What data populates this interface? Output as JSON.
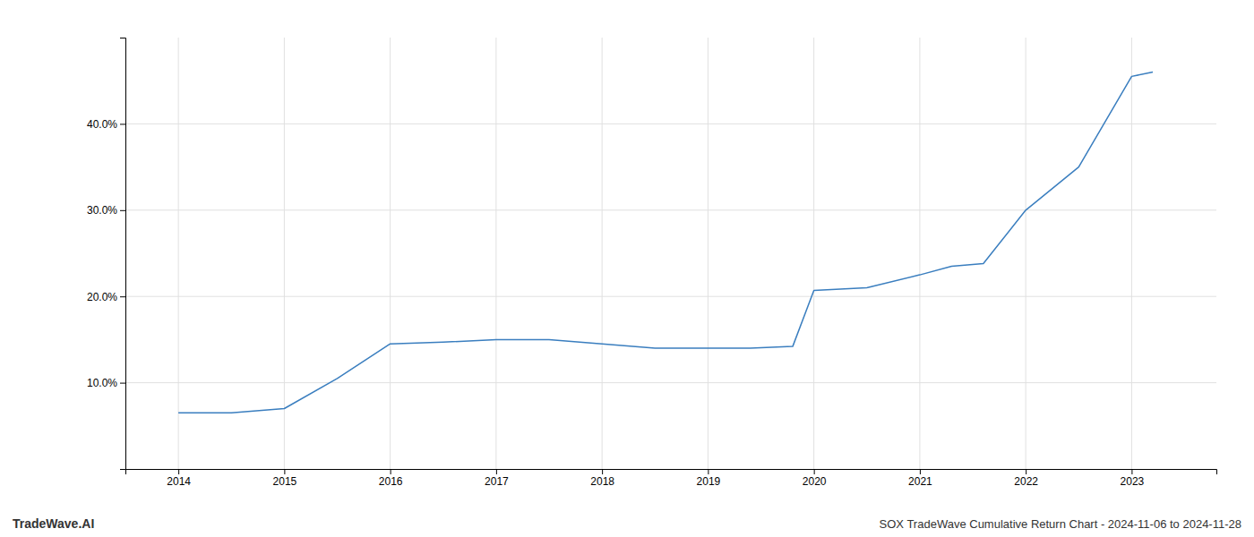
{
  "chart_data": {
    "type": "line",
    "title": "SOX TradeWave Cumulative Return Chart - 2024-11-06 to 2024-11-28",
    "annotations": [
      "TradeWave.AI"
    ],
    "x": [
      2014.0,
      2014.5,
      2015.0,
      2015.5,
      2016.0,
      2016.5,
      2017.0,
      2017.5,
      2018.0,
      2018.5,
      2019.0,
      2019.4,
      2019.8,
      2020.0,
      2020.5,
      2021.0,
      2021.3,
      2021.6,
      2022.0,
      2022.5,
      2023.0,
      2023.2
    ],
    "values": [
      6.5,
      6.5,
      7.0,
      10.5,
      14.5,
      14.7,
      15.0,
      15.0,
      14.5,
      14.0,
      14.0,
      14.0,
      14.2,
      20.7,
      21.0,
      22.5,
      23.5,
      23.8,
      30.0,
      35.0,
      45.5,
      46.0
    ],
    "color": "#3a7ebf",
    "xlim": [
      2013.5,
      2023.8
    ],
    "ylim": [
      0,
      50
    ],
    "xticks": [
      2014,
      2015,
      2016,
      2017,
      2018,
      2019,
      2020,
      2021,
      2022,
      2023
    ],
    "yticks": [
      {
        "value": 10.0,
        "label": "10.0%"
      },
      {
        "value": 20.0,
        "label": "20.0%"
      },
      {
        "value": 30.0,
        "label": "30.0%"
      },
      {
        "value": 40.0,
        "label": "40.0%"
      }
    ],
    "grid": true
  }
}
